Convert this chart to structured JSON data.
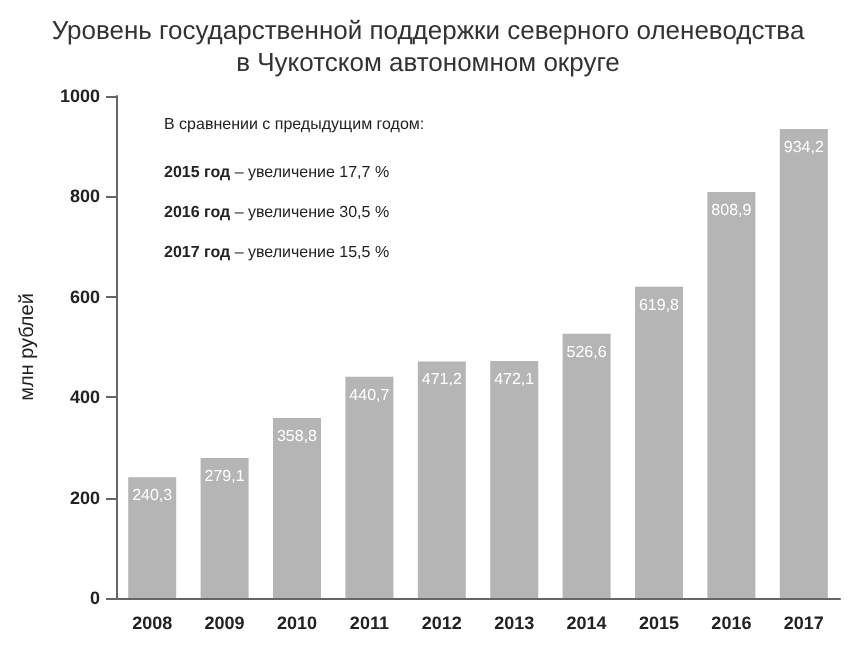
{
  "chart_data": {
    "type": "bar",
    "title": "Уровень государственной поддержки северного оленеводства\nв Чукотском автономном округе",
    "ylabel": "млн рублей",
    "categories": [
      "2008",
      "2009",
      "2010",
      "2011",
      "2012",
      "2013",
      "2014",
      "2015",
      "2016",
      "2017"
    ],
    "values": [
      240.3,
      279.1,
      358.8,
      440.7,
      471.2,
      472.1,
      526.6,
      619.8,
      808.9,
      934.2
    ],
    "value_labels": [
      "240,3",
      "279,1",
      "358,8",
      "440,7",
      "471,2",
      "472,1",
      "526,6",
      "619,8",
      "808,9",
      "934,2"
    ],
    "color": "#b5b5b5",
    "ylim": [
      0,
      1000
    ],
    "yticks": [
      0,
      200,
      400,
      600,
      800,
      1000
    ],
    "grid": false,
    "annotations": [
      "В сравнении с предыдущим годом:",
      "2015 год – увеличение 17,7 %",
      "2016 год – увеличение 30,5 %",
      "2017 год – увеличение 15,5 %"
    ]
  }
}
